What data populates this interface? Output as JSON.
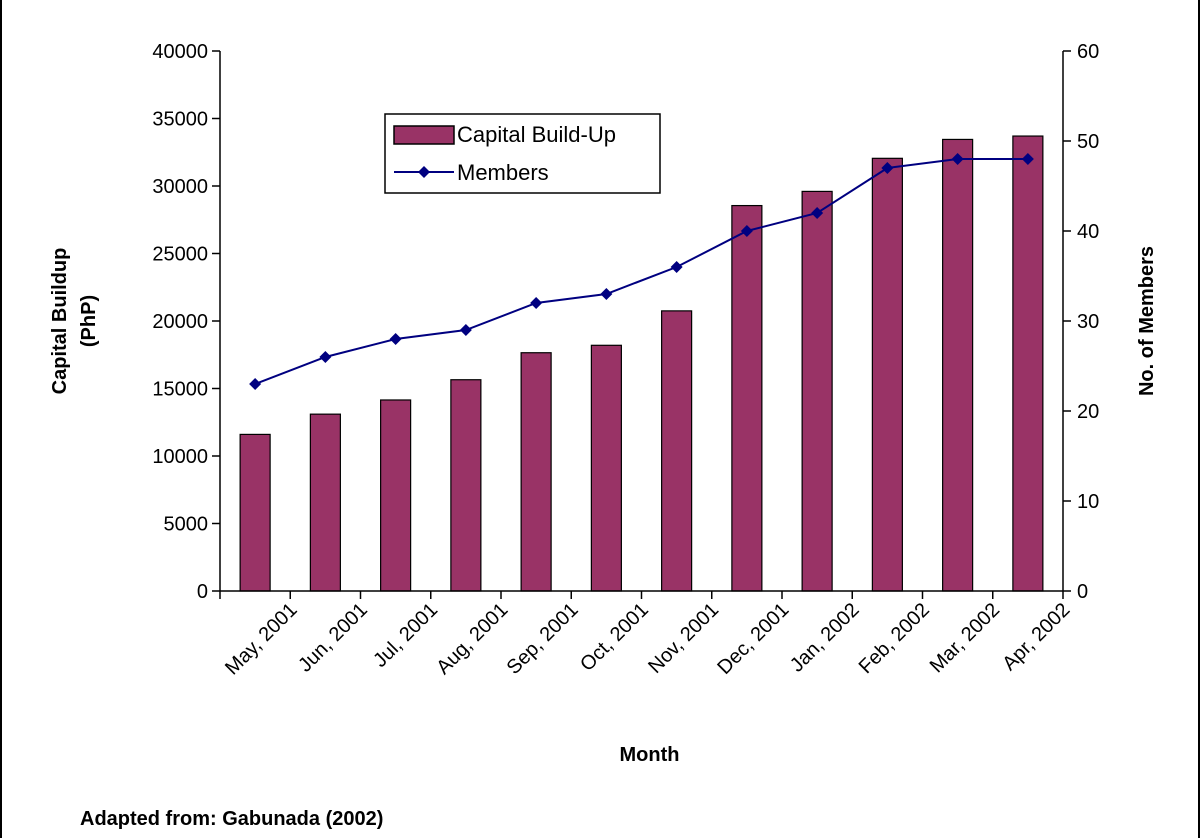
{
  "chart_data": {
    "type": "bar",
    "categories": [
      "May, 2001",
      "Jun, 2001",
      "Jul, 2001",
      "Aug, 2001",
      "Sep, 2001",
      "Oct, 2001",
      "Nov, 2001",
      "Dec, 2001",
      "Jan, 2002",
      "Feb, 2002",
      "Mar, 2002",
      "Apr, 2002"
    ],
    "series": [
      {
        "name": "Capital Build-Up",
        "type": "bar",
        "axis": "left",
        "color": "#993366",
        "values": [
          11600,
          13100,
          14150,
          15650,
          17650,
          18200,
          20750,
          28550,
          29600,
          32050,
          33450,
          33700
        ]
      },
      {
        "name": "Members",
        "type": "line",
        "axis": "right",
        "color": "#000080",
        "marker": "diamond",
        "values": [
          23,
          26,
          28,
          29,
          32,
          33,
          36,
          40,
          42,
          47,
          48,
          48
        ]
      }
    ],
    "xlabel": "Month",
    "ylabel": "Capital Buildup (PhP)",
    "ylabel_lines": [
      "Capital Buildup",
      "(PhP)"
    ],
    "y2label": "No. of Members",
    "ylim": [
      0,
      40000
    ],
    "y2lim": [
      0,
      60
    ],
    "yticks": [
      0,
      5000,
      10000,
      15000,
      20000,
      25000,
      30000,
      35000,
      40000
    ],
    "y2ticks": [
      0,
      10,
      20,
      30,
      40,
      50,
      60
    ],
    "grid": false,
    "legend_position": "top-center",
    "source_note": "Adapted from: Gabunada (2002)"
  }
}
